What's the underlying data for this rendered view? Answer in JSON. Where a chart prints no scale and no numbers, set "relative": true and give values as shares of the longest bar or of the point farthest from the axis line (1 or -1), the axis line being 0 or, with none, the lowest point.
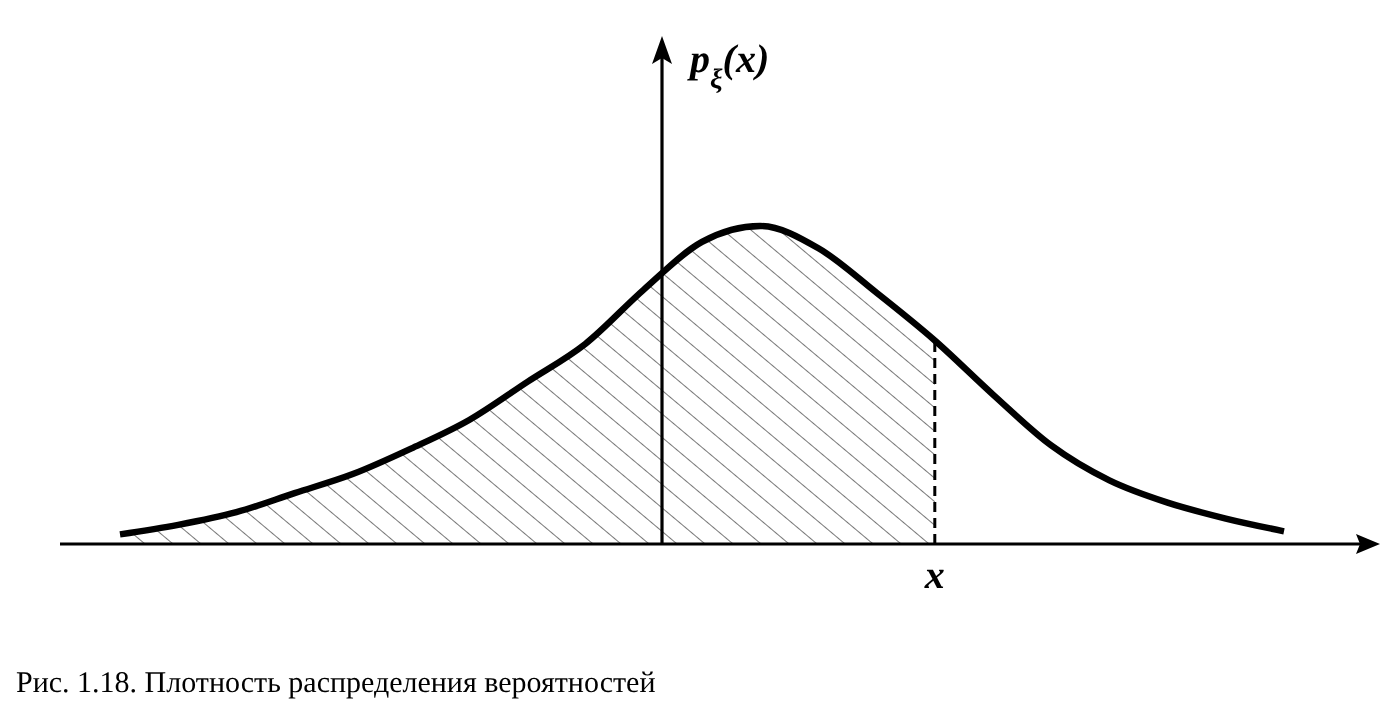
{
  "chart_data": {
    "type": "line",
    "relative": true,
    "ylabel": "p$_{ξ}$(x)",
    "categories": [
      null,
      null,
      null,
      null,
      null,
      null,
      null,
      null,
      null,
      null,
      null,
      null,
      null,
      null,
      null,
      null,
      null,
      null,
      null,
      null,
      null
    ],
    "series": [
      {
        "color": "#000000",
        "values": [
          0.03,
          0.06,
          0.1,
          0.16,
          0.22,
          0.3,
          0.39,
          0.51,
          0.63,
          0.8,
          0.95,
          1.0,
          0.93,
          0.79,
          0.64,
          0.47,
          0.31,
          0.2,
          0.13,
          0.08,
          0.04
        ]
      },
      {
        "type": "area",
        "color": "#555555",
        "values": [
          0.03,
          0.06,
          0.1,
          0.16,
          0.22,
          0.3,
          0.39,
          0.51,
          0.63,
          0.8,
          0.95,
          1.0,
          0.93,
          0.79,
          0.64,
          null,
          null,
          null,
          null,
          null,
          null
        ]
      }
    ],
    "annotations": [
      {
        "text": "x"
      },
      "Рис. 1.18. Плотность распределения вероятностей"
    ]
  }
}
